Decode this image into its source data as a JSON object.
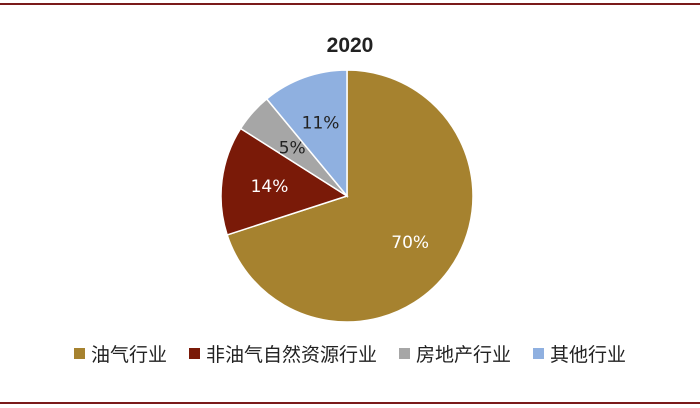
{
  "chart_data": {
    "type": "pie",
    "title": "2020",
    "slices": [
      {
        "name": "油气行业",
        "value": 70,
        "label": "70%",
        "color": "#a6822f"
      },
      {
        "name": "非油气自然资源行业",
        "value": 14,
        "label": "14%",
        "color": "#7a1a08"
      },
      {
        "name": "房地产行业",
        "value": 5,
        "label": "5%",
        "color": "#a6a6a6"
      },
      {
        "name": "其他行业",
        "value": 11,
        "label": "11%",
        "color": "#8fb0e0"
      }
    ],
    "legend_position": "bottom"
  }
}
